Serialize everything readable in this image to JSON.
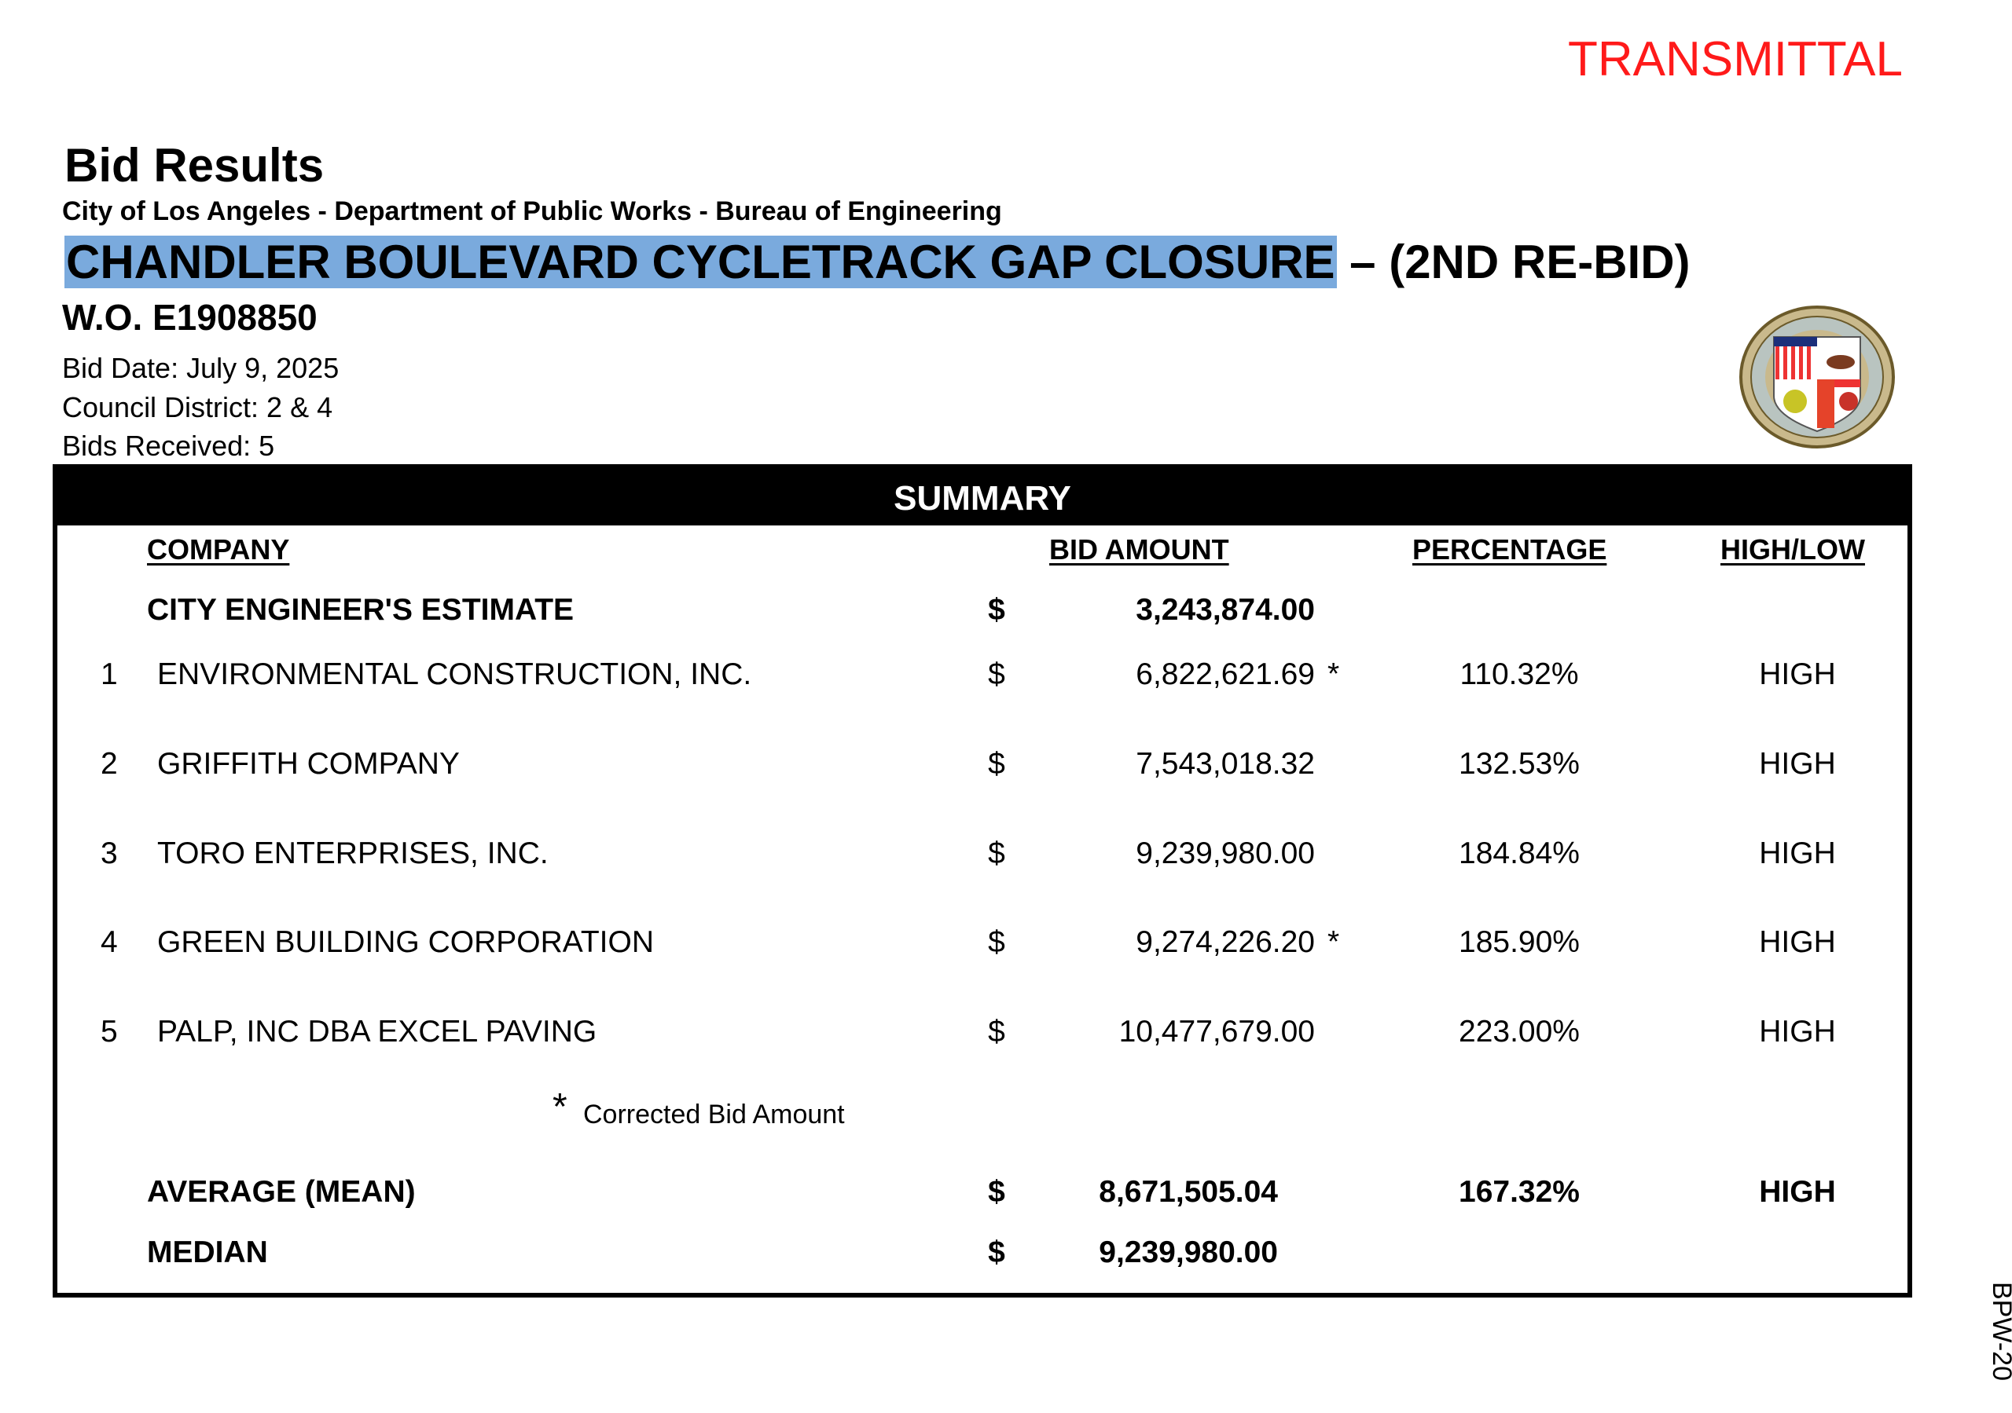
{
  "header": {
    "stamp": "TRANSMITTAL",
    "title": "Bid Results",
    "department": "City of Los Angeles - Department of Public Works - Bureau of Engineering",
    "project_highlighted": "CHANDLER BOULEVARD CYCLETRACK GAP CLOSURE",
    "project_suffix": " – (2ND RE-BID)",
    "work_order": "W.O. E1908850",
    "bid_date": "Bid Date: July 9, 2025",
    "council_district": "Council District: 2 & 4",
    "bids_received": "Bids Received:  5",
    "seal_text": "CITY OF LOS ANGELES FOUNDED 1781"
  },
  "summary": {
    "title": "SUMMARY",
    "columns": [
      "COMPANY",
      "BID AMOUNT",
      "PERCENTAGE",
      "HIGH/LOW"
    ],
    "estimate": {
      "label": "CITY ENGINEER'S ESTIMATE",
      "currency": "$",
      "amount": "3,243,874.00"
    },
    "rows": [
      {
        "num": "1",
        "company": "ENVIRONMENTAL CONSTRUCTION, INC.",
        "currency": "$",
        "amount": "6,822,621.69",
        "mark": "*",
        "pct": "110.32%",
        "hl": "HIGH"
      },
      {
        "num": "2",
        "company": "GRIFFITH COMPANY",
        "currency": "$",
        "amount": "7,543,018.32",
        "mark": "",
        "pct": "132.53%",
        "hl": "HIGH"
      },
      {
        "num": "3",
        "company": "TORO ENTERPRISES, INC.",
        "currency": "$",
        "amount": "9,239,980.00",
        "mark": "",
        "pct": "184.84%",
        "hl": "HIGH"
      },
      {
        "num": "4",
        "company": "GREEN BUILDING CORPORATION",
        "currency": "$",
        "amount": "9,274,226.20",
        "mark": "*",
        "pct": "185.90%",
        "hl": "HIGH"
      },
      {
        "num": "5",
        "company": "PALP, INC DBA EXCEL PAVING",
        "currency": "$",
        "amount": "10,477,679.00",
        "mark": "",
        "pct": "223.00%",
        "hl": "HIGH"
      }
    ],
    "footnote_mark": "*",
    "footnote": "Corrected Bid Amount",
    "average": {
      "label": "AVERAGE (MEAN)",
      "currency": "$",
      "amount": "8,671,505.04",
      "pct": "167.32%",
      "hl": "HIGH"
    },
    "median": {
      "label": "MEDIAN",
      "currency": "$",
      "amount": "9,239,980.00"
    }
  },
  "side_label": "BPW-20",
  "colors": {
    "stamp": "#ff1a1a",
    "highlight": "#7aaadd",
    "header_band": "#000000"
  }
}
